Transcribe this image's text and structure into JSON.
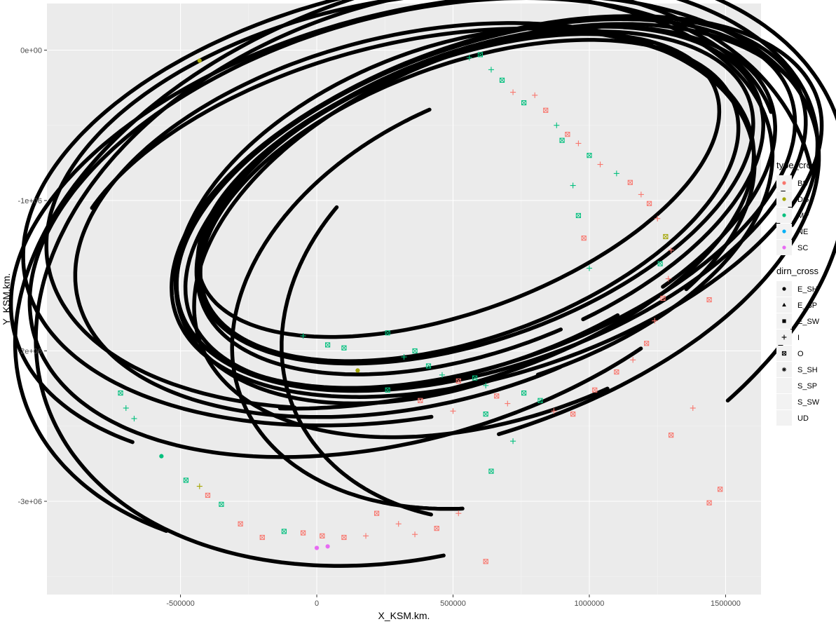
{
  "chart_data": {
    "type": "scatter",
    "title": "",
    "xlabel": "X_KSM.km.",
    "ylabel": "Y_KSM.km.",
    "xlim": [
      -990000,
      1630000
    ],
    "ylim": [
      -3620000,
      310000
    ],
    "x_ticks": [
      {
        "value": -500000,
        "label": "-500000"
      },
      {
        "value": 0,
        "label": "0"
      },
      {
        "value": 500000,
        "label": "500000"
      },
      {
        "value": 1000000,
        "label": "1000000"
      },
      {
        "value": 1500000,
        "label": "1500000"
      }
    ],
    "y_ticks": [
      {
        "value": 0,
        "label": "0e+00"
      },
      {
        "value": -1000000,
        "label": "-1e+06"
      },
      {
        "value": -2000000,
        "label": "-2e+06"
      },
      {
        "value": -3000000,
        "label": "-3e+06"
      }
    ],
    "grid": true,
    "background": "#ebebeb",
    "legend_position": "right",
    "legends": [
      {
        "title": "type_cross",
        "items": [
          {
            "label": "BS",
            "color": "#F8766D"
          },
          {
            "label": "DG",
            "color": "#A3A500"
          },
          {
            "label": "MP",
            "color": "#00BF7D"
          },
          {
            "label": "NE",
            "color": "#00B0F6"
          },
          {
            "label": "SC",
            "color": "#E76BF3"
          }
        ]
      },
      {
        "title": "dirn_cross",
        "items": [
          {
            "label": "E_SH",
            "shape": "circle"
          },
          {
            "label": "E_SP",
            "shape": "triangle"
          },
          {
            "label": "E_SW",
            "shape": "square"
          },
          {
            "label": "I",
            "shape": "plus"
          },
          {
            "label": "O",
            "shape": "square-x"
          },
          {
            "label": "S_SH",
            "shape": "asterisk"
          },
          {
            "label": "S_SP",
            "shape": "none"
          },
          {
            "label": "S_SW",
            "shape": "none"
          },
          {
            "label": "UD",
            "shape": "none"
          }
        ]
      }
    ],
    "trajectories": [
      {
        "name": "E1",
        "cx": 340000,
        "cy": -1120000,
        "a": 1030000,
        "b": 1460000,
        "rot": -45,
        "t0": -1.0,
        "t1": 3.7
      },
      {
        "name": "E2",
        "cx": 360000,
        "cy": -1130000,
        "a": 1080000,
        "b": 1450000,
        "rot": -40,
        "t0": 0.2,
        "t1": 6.0
      },
      {
        "name": "E3",
        "cx": 340000,
        "cy": -1000000,
        "a": 1200000,
        "b": 1500000,
        "rot": -40,
        "t0": -0.4,
        "t1": 5.2
      },
      {
        "name": "E4",
        "cx": 380000,
        "cy": -1000000,
        "a": 1280000,
        "b": 1650000,
        "rot": -42,
        "t0": 0.5,
        "t1": 5.6
      },
      {
        "name": "E5",
        "cx": 360000,
        "cy": -1200000,
        "a": 1260000,
        "b": 1750000,
        "rot": -40,
        "t0": -0.5,
        "t1": 4.8
      },
      {
        "name": "E6",
        "cx": 320000,
        "cy": -1180000,
        "a": 1180000,
        "b": 1680000,
        "rot": -36,
        "t0": 1.0,
        "t1": 6.2
      },
      {
        "name": "E7",
        "cx": 420000,
        "cy": -1400000,
        "a": 1400000,
        "b": 2050000,
        "rot": -24,
        "t0": -0.2,
        "t1": 4.6
      },
      {
        "name": "E8",
        "cx": 400000,
        "cy": -1500000,
        "a": 1360000,
        "b": 1980000,
        "rot": -18,
        "t0": 0.6,
        "t1": 5.2
      },
      {
        "name": "E9",
        "cx": 600000,
        "cy": -1000000,
        "a": 820000,
        "b": 1320000,
        "rot": -38,
        "t0": -0.3,
        "t1": 5.9
      },
      {
        "name": "E10",
        "cx": 600000,
        "cy": -1050000,
        "a": 850000,
        "b": 1380000,
        "rot": -38,
        "t0": 0.0,
        "t1": 6.1
      },
      {
        "name": "E11",
        "cx": 620000,
        "cy": -1020000,
        "a": 880000,
        "b": 1420000,
        "rot": -40,
        "t0": 0.0,
        "t1": 6.28
      },
      {
        "name": "E12",
        "cx": 640000,
        "cy": -1020000,
        "a": 900000,
        "b": 1440000,
        "rot": -40,
        "t0": 0.0,
        "t1": 6.28
      },
      {
        "name": "E13",
        "cx": 580000,
        "cy": -980000,
        "a": 790000,
        "b": 1280000,
        "rot": -40,
        "t0": 0.0,
        "t1": 6.28
      },
      {
        "name": "E14",
        "cx": 560000,
        "cy": -1000000,
        "a": 760000,
        "b": 1240000,
        "rot": -40,
        "t0": 0.0,
        "t1": 6.28
      },
      {
        "name": "E15",
        "cx": 520000,
        "cy": -900000,
        "a": 700000,
        "b": 1200000,
        "rot": -42,
        "t0": 0.0,
        "t1": 6.28
      },
      {
        "name": "E16",
        "cx": 660000,
        "cy": -1040000,
        "a": 930000,
        "b": 1470000,
        "rot": -41,
        "t0": 0.0,
        "t1": 6.28
      },
      {
        "name": "E17",
        "cx": 500000,
        "cy": -1100000,
        "a": 880000,
        "b": 1350000,
        "rot": -30,
        "t0": 1.5,
        "t1": 5.6
      },
      {
        "name": "E18",
        "cx": 700000,
        "cy": -1200000,
        "a": 980000,
        "b": 1500000,
        "rot": -32,
        "t0": 1.2,
        "t1": 5.8
      },
      {
        "name": "E19",
        "cx": 760000,
        "cy": -1600000,
        "a": 1000000,
        "b": 1500000,
        "rot": -20,
        "t0": 2.4,
        "t1": 5.0
      },
      {
        "name": "E20",
        "cx": 820000,
        "cy": -1700000,
        "a": 920000,
        "b": 1450000,
        "rot": -12,
        "t0": 2.8,
        "t1": 4.6
      }
    ],
    "markers": [
      {
        "x": 560000,
        "y": -50000,
        "type": "MP",
        "dirn": "I"
      },
      {
        "x": 600000,
        "y": -30000,
        "type": "MP",
        "dirn": "O"
      },
      {
        "x": 640000,
        "y": -130000,
        "type": "MP",
        "dirn": "I"
      },
      {
        "x": 680000,
        "y": -200000,
        "type": "MP",
        "dirn": "O"
      },
      {
        "x": 720000,
        "y": -280000,
        "type": "BS",
        "dirn": "I"
      },
      {
        "x": 760000,
        "y": -350000,
        "type": "MP",
        "dirn": "O"
      },
      {
        "x": 800000,
        "y": -300000,
        "type": "BS",
        "dirn": "I"
      },
      {
        "x": 840000,
        "y": -400000,
        "type": "BS",
        "dirn": "O"
      },
      {
        "x": 880000,
        "y": -500000,
        "type": "MP",
        "dirn": "I"
      },
      {
        "x": 920000,
        "y": -560000,
        "type": "BS",
        "dirn": "O"
      },
      {
        "x": 960000,
        "y": -620000,
        "type": "BS",
        "dirn": "I"
      },
      {
        "x": 1000000,
        "y": -700000,
        "type": "MP",
        "dirn": "O"
      },
      {
        "x": 1040000,
        "y": -760000,
        "type": "BS",
        "dirn": "I"
      },
      {
        "x": 1100000,
        "y": -820000,
        "type": "MP",
        "dirn": "I"
      },
      {
        "x": 1150000,
        "y": -880000,
        "type": "BS",
        "dirn": "O"
      },
      {
        "x": 1190000,
        "y": -960000,
        "type": "BS",
        "dirn": "I"
      },
      {
        "x": 1220000,
        "y": -1020000,
        "type": "BS",
        "dirn": "O"
      },
      {
        "x": 1250000,
        "y": -1120000,
        "type": "BS",
        "dirn": "I"
      },
      {
        "x": 1280000,
        "y": -1240000,
        "type": "DG",
        "dirn": "O"
      },
      {
        "x": 1300000,
        "y": -1330000,
        "type": "BS",
        "dirn": "I"
      },
      {
        "x": 1260000,
        "y": -1420000,
        "type": "MP",
        "dirn": "O"
      },
      {
        "x": 1290000,
        "y": -1520000,
        "type": "BS",
        "dirn": "I"
      },
      {
        "x": 1270000,
        "y": -1650000,
        "type": "BS",
        "dirn": "O"
      },
      {
        "x": 1240000,
        "y": -1800000,
        "type": "BS",
        "dirn": "I"
      },
      {
        "x": 1210000,
        "y": -1950000,
        "type": "BS",
        "dirn": "O"
      },
      {
        "x": 1160000,
        "y": -2060000,
        "type": "BS",
        "dirn": "I"
      },
      {
        "x": 1100000,
        "y": -2140000,
        "type": "BS",
        "dirn": "O"
      },
      {
        "x": 900000,
        "y": -600000,
        "type": "MP",
        "dirn": "O"
      },
      {
        "x": 940000,
        "y": -900000,
        "type": "MP",
        "dirn": "I"
      },
      {
        "x": 960000,
        "y": -1100000,
        "type": "MP",
        "dirn": "O"
      },
      {
        "x": 980000,
        "y": -1250000,
        "type": "BS",
        "dirn": "O"
      },
      {
        "x": 1000000,
        "y": -1450000,
        "type": "MP",
        "dirn": "I"
      },
      {
        "x": 260000,
        "y": -1880000,
        "type": "MP",
        "dirn": "O"
      },
      {
        "x": 320000,
        "y": -2040000,
        "type": "MP",
        "dirn": "I"
      },
      {
        "x": 360000,
        "y": -2000000,
        "type": "MP",
        "dirn": "O"
      },
      {
        "x": 410000,
        "y": -2100000,
        "type": "MP",
        "dirn": "O"
      },
      {
        "x": 460000,
        "y": -2160000,
        "type": "MP",
        "dirn": "I"
      },
      {
        "x": 520000,
        "y": -2200000,
        "type": "BS",
        "dirn": "O"
      },
      {
        "x": 580000,
        "y": -2180000,
        "type": "MP",
        "dirn": "O"
      },
      {
        "x": 620000,
        "y": -2230000,
        "type": "MP",
        "dirn": "I"
      },
      {
        "x": 660000,
        "y": -2300000,
        "type": "BS",
        "dirn": "O"
      },
      {
        "x": 700000,
        "y": -2350000,
        "type": "BS",
        "dirn": "I"
      },
      {
        "x": 760000,
        "y": -2280000,
        "type": "MP",
        "dirn": "O"
      },
      {
        "x": 820000,
        "y": -2330000,
        "type": "MP",
        "dirn": "O"
      },
      {
        "x": 870000,
        "y": -2400000,
        "type": "BS",
        "dirn": "I"
      },
      {
        "x": 940000,
        "y": -2420000,
        "type": "BS",
        "dirn": "O"
      },
      {
        "x": 1020000,
        "y": -2260000,
        "type": "BS",
        "dirn": "O"
      },
      {
        "x": 100000,
        "y": -1980000,
        "type": "MP",
        "dirn": "O"
      },
      {
        "x": 150000,
        "y": -2130000,
        "type": "DG",
        "dirn": "E_SH"
      },
      {
        "x": 260000,
        "y": -2260000,
        "type": "MP",
        "dirn": "O"
      },
      {
        "x": 380000,
        "y": -2330000,
        "type": "BS",
        "dirn": "O"
      },
      {
        "x": 500000,
        "y": -2400000,
        "type": "BS",
        "dirn": "I"
      },
      {
        "x": 620000,
        "y": -2420000,
        "type": "MP",
        "dirn": "O"
      },
      {
        "x": 720000,
        "y": -2600000,
        "type": "MP",
        "dirn": "I"
      },
      {
        "x": 640000,
        "y": -2800000,
        "type": "MP",
        "dirn": "O"
      },
      {
        "x": 620000,
        "y": -3400000,
        "type": "BS",
        "dirn": "O"
      },
      {
        "x": -720000,
        "y": -2280000,
        "type": "MP",
        "dirn": "O"
      },
      {
        "x": -700000,
        "y": -2380000,
        "type": "MP",
        "dirn": "I"
      },
      {
        "x": -670000,
        "y": -2450000,
        "type": "MP",
        "dirn": "I"
      },
      {
        "x": -570000,
        "y": -2700000,
        "type": "MP",
        "dirn": "E_SH"
      },
      {
        "x": -480000,
        "y": -2860000,
        "type": "MP",
        "dirn": "O"
      },
      {
        "x": -430000,
        "y": -2900000,
        "type": "DG",
        "dirn": "I"
      },
      {
        "x": -400000,
        "y": -2960000,
        "type": "BS",
        "dirn": "O"
      },
      {
        "x": -350000,
        "y": -3020000,
        "type": "MP",
        "dirn": "O"
      },
      {
        "x": -280000,
        "y": -3150000,
        "type": "BS",
        "dirn": "O"
      },
      {
        "x": -200000,
        "y": -3240000,
        "type": "BS",
        "dirn": "O"
      },
      {
        "x": -120000,
        "y": -3200000,
        "type": "MP",
        "dirn": "O"
      },
      {
        "x": -50000,
        "y": -3210000,
        "type": "BS",
        "dirn": "O"
      },
      {
        "x": 20000,
        "y": -3230000,
        "type": "BS",
        "dirn": "O"
      },
      {
        "x": 100000,
        "y": -3240000,
        "type": "BS",
        "dirn": "O"
      },
      {
        "x": 180000,
        "y": -3230000,
        "type": "BS",
        "dirn": "I"
      },
      {
        "x": 300000,
        "y": -3150000,
        "type": "BS",
        "dirn": "I"
      },
      {
        "x": 360000,
        "y": -3220000,
        "type": "BS",
        "dirn": "I"
      },
      {
        "x": 440000,
        "y": -3180000,
        "type": "BS",
        "dirn": "O"
      },
      {
        "x": 520000,
        "y": -3080000,
        "type": "BS",
        "dirn": "I"
      },
      {
        "x": 220000,
        "y": -3080000,
        "type": "BS",
        "dirn": "O"
      },
      {
        "x": 0,
        "y": -3310000,
        "type": "SC",
        "dirn": "E_SH"
      },
      {
        "x": 40000,
        "y": -3300000,
        "type": "SC",
        "dirn": "E_SH"
      },
      {
        "x": -430000,
        "y": -70000,
        "type": "DG",
        "dirn": "E_SH"
      },
      {
        "x": 1440000,
        "y": -1660000,
        "type": "BS",
        "dirn": "O"
      },
      {
        "x": 1440000,
        "y": -3010000,
        "type": "BS",
        "dirn": "O"
      },
      {
        "x": 1480000,
        "y": -2920000,
        "type": "BS",
        "dirn": "O"
      },
      {
        "x": 1380000,
        "y": -2380000,
        "type": "BS",
        "dirn": "I"
      },
      {
        "x": 1300000,
        "y": -2560000,
        "type": "BS",
        "dirn": "O"
      },
      {
        "x": -50000,
        "y": -1900000,
        "type": "MP",
        "dirn": "I"
      },
      {
        "x": 40000,
        "y": -1960000,
        "type": "MP",
        "dirn": "O"
      }
    ]
  }
}
